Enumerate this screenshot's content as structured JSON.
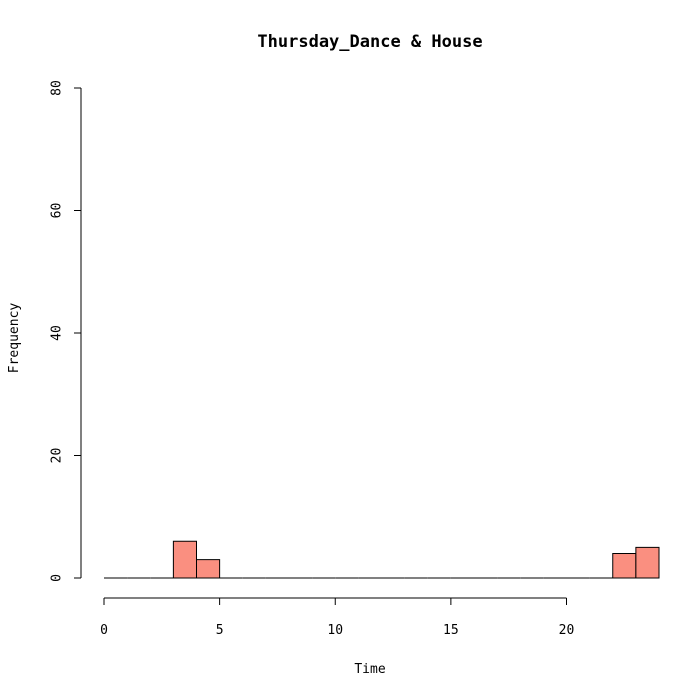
{
  "chart_data": {
    "type": "bar",
    "title": "Thursday_Dance & House",
    "xlabel": "Time",
    "ylabel": "Frequency",
    "xlim": [
      0,
      24
    ],
    "ylim": [
      0,
      80
    ],
    "x_ticks": [
      0,
      5,
      10,
      15,
      20
    ],
    "y_ticks": [
      0,
      20,
      40,
      60,
      80
    ],
    "bin_width": 1,
    "bins": [
      {
        "start": 0,
        "end": 1,
        "count": 0
      },
      {
        "start": 1,
        "end": 2,
        "count": 0
      },
      {
        "start": 2,
        "end": 3,
        "count": 0
      },
      {
        "start": 3,
        "end": 4,
        "count": 6
      },
      {
        "start": 4,
        "end": 5,
        "count": 3
      },
      {
        "start": 5,
        "end": 6,
        "count": 0
      },
      {
        "start": 6,
        "end": 7,
        "count": 0
      },
      {
        "start": 7,
        "end": 8,
        "count": 0
      },
      {
        "start": 8,
        "end": 9,
        "count": 0
      },
      {
        "start": 9,
        "end": 10,
        "count": 0
      },
      {
        "start": 10,
        "end": 11,
        "count": 0
      },
      {
        "start": 11,
        "end": 12,
        "count": 0
      },
      {
        "start": 12,
        "end": 13,
        "count": 0
      },
      {
        "start": 13,
        "end": 14,
        "count": 0
      },
      {
        "start": 14,
        "end": 15,
        "count": 0
      },
      {
        "start": 15,
        "end": 16,
        "count": 0
      },
      {
        "start": 16,
        "end": 17,
        "count": 0
      },
      {
        "start": 17,
        "end": 18,
        "count": 0
      },
      {
        "start": 18,
        "end": 19,
        "count": 0
      },
      {
        "start": 19,
        "end": 20,
        "count": 0
      },
      {
        "start": 20,
        "end": 21,
        "count": 0
      },
      {
        "start": 21,
        "end": 22,
        "count": 0
      },
      {
        "start": 22,
        "end": 23,
        "count": 4
      },
      {
        "start": 23,
        "end": 24,
        "count": 5
      }
    ],
    "bar_color": "#fa8f80",
    "grid": false,
    "legend": "none"
  }
}
